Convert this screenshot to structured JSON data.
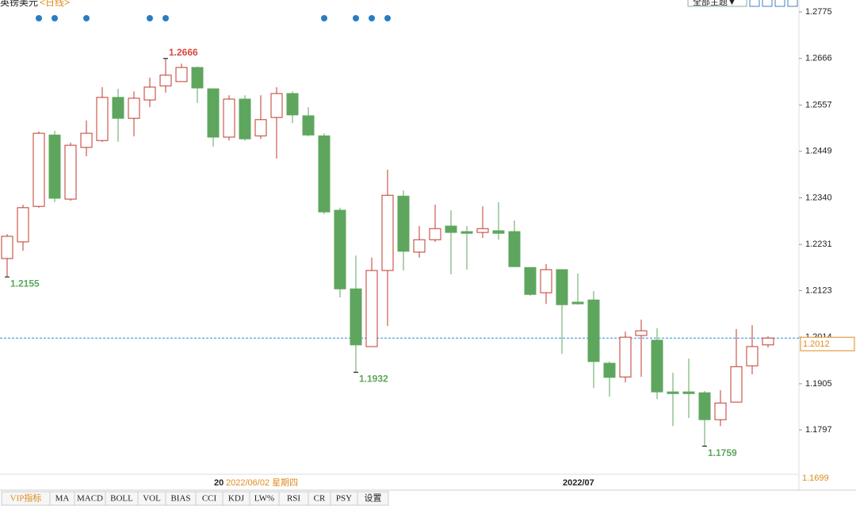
{
  "header": {
    "title": "英镑美元",
    "period": "<日线>",
    "theme_button": "全部主题▼"
  },
  "chart_data": {
    "type": "candlestick",
    "open": [
      1.2198,
      1.2237,
      1.232,
      1.2487,
      1.2337,
      1.2458,
      1.2474,
      1.2575,
      1.2526,
      1.2569,
      1.2602,
      1.2612,
      1.2645,
      1.2595,
      1.2482,
      1.2571,
      1.2485,
      1.2528,
      1.2584,
      1.2532,
      1.2485,
      1.2311,
      1.2127,
      1.1992,
      1.217,
      1.2344,
      1.2213,
      1.2242,
      1.2274,
      1.2261,
      1.2259,
      1.2263,
      1.2261,
      1.2177,
      1.2118,
      1.2172,
      1.2096,
      1.2101,
      1.1953,
      1.1921,
      1.2018,
      1.2007,
      1.1886,
      1.1886,
      1.1884,
      1.1821,
      1.1862,
      1.1947,
      1.1996
    ],
    "high": [
      1.2255,
      1.2324,
      1.2495,
      1.2497,
      1.2469,
      1.2521,
      1.2599,
      1.2595,
      1.2589,
      1.2621,
      1.2666,
      1.2654,
      1.2647,
      1.2595,
      1.258,
      1.258,
      1.258,
      1.2599,
      1.2589,
      1.2552,
      1.2491,
      1.2317,
      1.2205,
      1.22,
      1.2406,
      1.2357,
      1.2274,
      1.2324,
      1.2311,
      1.2274,
      1.232,
      1.233,
      1.2287,
      1.2177,
      1.2185,
      1.2172,
      1.2163,
      1.2122,
      1.1957,
      1.2027,
      1.2055,
      1.2035,
      1.1931,
      1.1964,
      1.1888,
      1.189,
      1.2033,
      1.2042,
      1.2016
    ],
    "low": [
      1.2155,
      1.2216,
      1.2317,
      1.233,
      1.2333,
      1.2437,
      1.2471,
      1.2471,
      1.2484,
      1.2552,
      1.2586,
      1.2612,
      1.2562,
      1.246,
      1.2474,
      1.2474,
      1.2478,
      1.2432,
      1.2515,
      1.2484,
      1.2302,
      1.2107,
      1.1932,
      1.1992,
      1.204,
      1.217,
      1.22,
      1.2237,
      1.2161,
      1.2172,
      1.2246,
      1.2242,
      1.2179,
      1.2111,
      1.2092,
      1.1975,
      1.209,
      1.1895,
      1.1875,
      1.1908,
      1.1921,
      1.1869,
      1.1806,
      1.1825,
      1.1759,
      1.1806,
      1.1862,
      1.1927,
      1.199
    ],
    "close": [
      1.225,
      1.2317,
      1.2491,
      1.2339,
      1.2463,
      1.2491,
      1.2575,
      1.2526,
      1.2573,
      1.2599,
      1.2627,
      1.2645,
      1.2597,
      1.2482,
      1.2571,
      1.2478,
      1.2523,
      1.2584,
      1.2534,
      1.2487,
      1.2307,
      1.2127,
      1.1996,
      1.217,
      1.2346,
      1.2215,
      1.2242,
      1.2268,
      1.2259,
      1.2257,
      1.2268,
      1.2257,
      1.2179,
      1.2114,
      1.2172,
      1.209,
      1.2092,
      1.1957,
      1.192,
      1.2014,
      1.2029,
      1.1886,
      1.1882,
      1.1882,
      1.1821,
      1.186,
      1.1945,
      1.1992,
      1.2012
    ],
    "up_color": "#c0392b",
    "down_color": "#5ea65e",
    "ylim": [
      1.1684,
      1.2775
    ],
    "yticks": [
      1.2775,
      1.2666,
      1.2557,
      1.2449,
      {
        "value": 1.234,
        "label": "1.2340"
      },
      1.2231,
      1.2123,
      1.2014,
      1.1905,
      1.1797
    ],
    "last_price": 1.2012,
    "extremes": [
      {
        "value": 1.2666,
        "color": "#d9473f"
      },
      {
        "value": 1.2155,
        "color": "#5ea65e"
      },
      {
        "value": 1.1932,
        "color": "#5ea65e"
      },
      {
        "value": 1.1759,
        "color": "#5ea65e"
      }
    ],
    "x_labels": [
      "20",
      "2022/07"
    ],
    "cursor": {
      "date": "2022/06/02 星期四",
      "value": 1.1699
    }
  },
  "tabs": [
    "VIP指标",
    "MA",
    "MACD",
    "BOLL",
    "VOL",
    "BIAS",
    "CCI",
    "KDJ",
    "LW%",
    "RSI",
    "CR",
    "PSY",
    "设置"
  ]
}
